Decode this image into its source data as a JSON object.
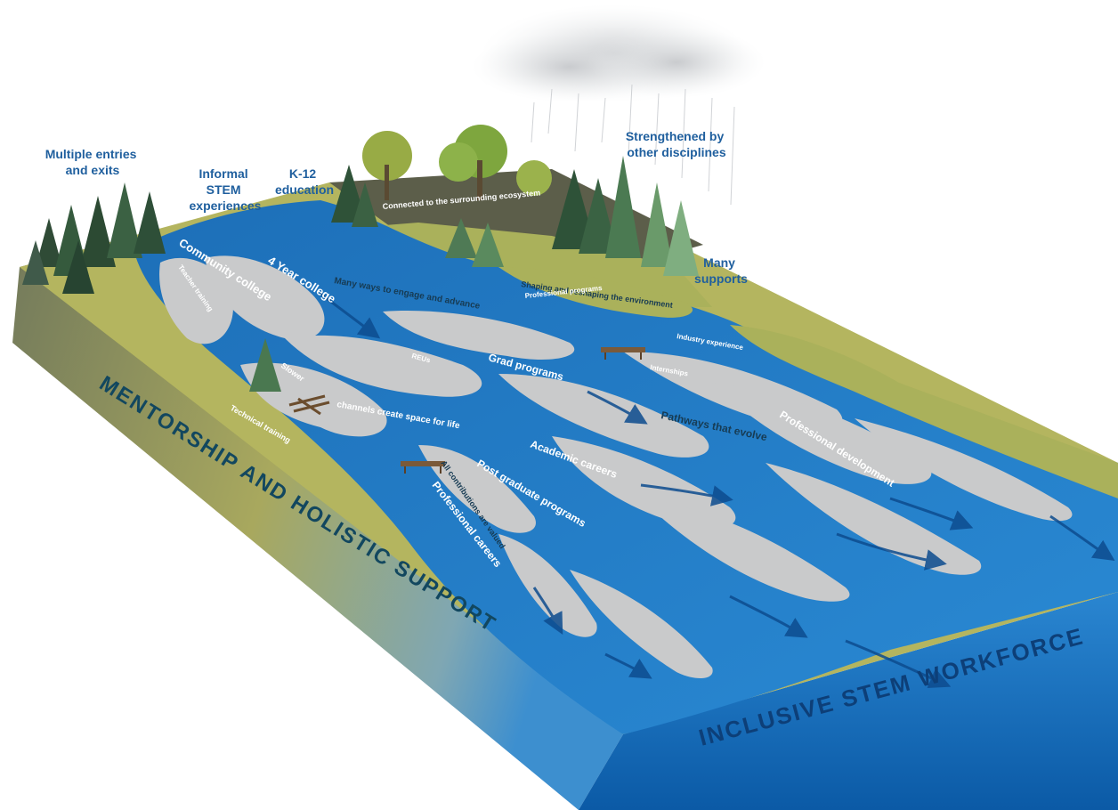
{
  "callouts": {
    "multiple_entries": [
      "Multiple entries",
      "and exits"
    ],
    "informal_stem": [
      "Informal",
      "STEM",
      "experiences"
    ],
    "k12": [
      "K-12",
      "education"
    ],
    "strengthened": [
      "Strengthened by",
      "other disciplines"
    ],
    "many_supports": [
      "Many",
      "supports"
    ]
  },
  "channels": {
    "community_college": "Community college",
    "teacher_training": "Teacher training",
    "four_year_college": "4 Year college",
    "slower": "Slower",
    "channels_create_space": "channels create space for life",
    "technical_training": "Technical training",
    "reus": "REUs",
    "grad_programs": "Grad programs",
    "internships": "Internships",
    "industry_experience": "Industry experience",
    "professional_programs": "Professional programs",
    "pathways_evolve": "Pathways that evolve",
    "professional_development": "Professional development",
    "academic_careers": "Academic careers",
    "post_graduate": "Post graduate programs",
    "all_contributions": "All contributions are valued",
    "professional_careers": "Professional careers"
  },
  "land_labels": {
    "connected_ecosystem": "Connected to the surrounding ecosystem",
    "many_ways": "Many ways to engage and advance",
    "shaping": "Shaping and reshaping the environment"
  },
  "faces": {
    "left_band": "MENTORSHIP AND HOLISTIC SUPPORT",
    "front": "INCLUSIVE STEM WORKFORCE"
  },
  "colors": {
    "water": "#1c6db5",
    "water_dark": "#0e4f93",
    "sand": "#c9cacb",
    "grass": "#b5b660",
    "grass_dark": "#8f9a4a",
    "soil": "#6f765c",
    "callout_text": "#1f5f9e"
  }
}
